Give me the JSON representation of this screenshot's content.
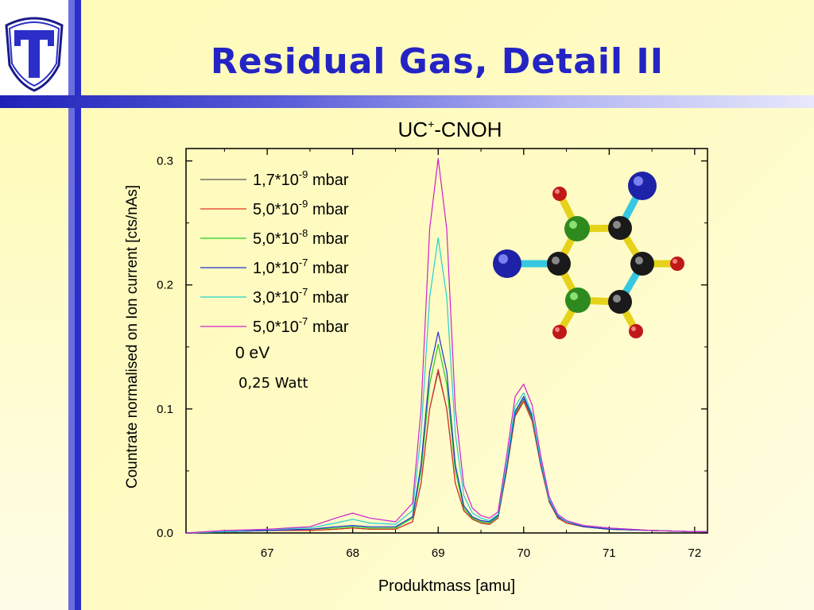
{
  "slide": {
    "title": "Residual Gas, Detail II",
    "colors": {
      "accent": "#2424c4",
      "bar": "#2b2fc8",
      "background": "#fffbb8"
    }
  },
  "logo": {
    "icon": "t-shield-logo-icon"
  },
  "molecule": {
    "icon": "molecule-ball-and-stick",
    "atoms": [
      "O",
      "C",
      "N",
      "C",
      "C",
      "N",
      "C",
      "O",
      "H",
      "H",
      "H",
      "H"
    ]
  },
  "chart_data": {
    "type": "line",
    "title": "UC+-CNOH",
    "title_main": "UC",
    "title_sup": "+",
    "title_rest": "-CNOH",
    "xlabel": "Produktmass [amu]",
    "ylabel": "Countrate normalised on Ion current [cts/nAs]",
    "xlim": [
      66.05,
      72.15
    ],
    "ylim": [
      0,
      0.31
    ],
    "xticks": [
      67,
      68,
      69,
      70,
      71,
      72
    ],
    "yticks": [
      0.0,
      0.1,
      0.2,
      0.3
    ],
    "xtick_labels": [
      "67",
      "68",
      "69",
      "70",
      "71",
      "72"
    ],
    "ytick_labels": [
      "0.0",
      "0.1",
      "0.2",
      "0.3"
    ],
    "legend_position": "top-left",
    "annotations": [
      "0 eV",
      "0,25 Watt"
    ],
    "series": [
      {
        "name": "1,7*10-9 mbar",
        "base": "1,7*10",
        "exp": "-9",
        "unit": " mbar",
        "color": "#555555",
        "x": [
          66.05,
          66.5,
          67.0,
          67.5,
          67.8,
          68.0,
          68.2,
          68.5,
          68.7,
          68.8,
          68.9,
          69.0,
          69.1,
          69.2,
          69.3,
          69.4,
          69.5,
          69.6,
          69.7,
          69.8,
          69.9,
          70.0,
          70.1,
          70.2,
          70.3,
          70.4,
          70.5,
          70.7,
          71.0,
          71.5,
          72.0,
          72.15
        ],
        "y": [
          0.0,
          0.001,
          0.002,
          0.002,
          0.003,
          0.004,
          0.003,
          0.003,
          0.009,
          0.04,
          0.1,
          0.13,
          0.1,
          0.04,
          0.018,
          0.011,
          0.008,
          0.007,
          0.012,
          0.05,
          0.095,
          0.108,
          0.092,
          0.055,
          0.025,
          0.012,
          0.008,
          0.005,
          0.003,
          0.002,
          0.001,
          0.001
        ]
      },
      {
        "name": "5,0*10-9 mbar",
        "base": "5,0*10",
        "exp": "-9",
        "unit": " mbar",
        "color": "#e03020",
        "x": [
          66.05,
          66.5,
          67.0,
          67.5,
          67.8,
          68.0,
          68.2,
          68.5,
          68.7,
          68.8,
          68.9,
          69.0,
          69.1,
          69.2,
          69.3,
          69.4,
          69.5,
          69.6,
          69.7,
          69.8,
          69.9,
          70.0,
          70.1,
          70.2,
          70.3,
          70.4,
          70.5,
          70.7,
          71.0,
          71.5,
          72.0,
          72.15
        ],
        "y": [
          0.0,
          0.001,
          0.002,
          0.002,
          0.003,
          0.004,
          0.003,
          0.003,
          0.009,
          0.04,
          0.1,
          0.132,
          0.1,
          0.04,
          0.018,
          0.011,
          0.008,
          0.007,
          0.012,
          0.05,
          0.094,
          0.106,
          0.09,
          0.054,
          0.025,
          0.012,
          0.008,
          0.005,
          0.003,
          0.002,
          0.001,
          0.001
        ]
      },
      {
        "name": "5,0*10-8 mbar",
        "base": "5,0*10",
        "exp": "-8",
        "unit": " mbar",
        "color": "#22cc22",
        "x": [
          66.05,
          66.5,
          67.0,
          67.5,
          67.8,
          68.0,
          68.2,
          68.5,
          68.7,
          68.8,
          68.9,
          69.0,
          69.1,
          69.2,
          69.3,
          69.4,
          69.5,
          69.6,
          69.7,
          69.8,
          69.9,
          70.0,
          70.1,
          70.2,
          70.3,
          70.4,
          70.5,
          70.7,
          71.0,
          71.5,
          72.0,
          72.15
        ],
        "y": [
          0.0,
          0.001,
          0.002,
          0.003,
          0.004,
          0.005,
          0.004,
          0.004,
          0.012,
          0.05,
          0.12,
          0.152,
          0.12,
          0.05,
          0.02,
          0.012,
          0.009,
          0.008,
          0.013,
          0.052,
          0.097,
          0.11,
          0.093,
          0.056,
          0.026,
          0.013,
          0.009,
          0.005,
          0.003,
          0.002,
          0.001,
          0.001
        ]
      },
      {
        "name": "1,0*10-7 mbar",
        "base": "1,0*10",
        "exp": "-7",
        "unit": " mbar",
        "color": "#2030d0",
        "x": [
          66.05,
          66.5,
          67.0,
          67.5,
          67.8,
          68.0,
          68.2,
          68.5,
          68.7,
          68.8,
          68.9,
          69.0,
          69.1,
          69.2,
          69.3,
          69.4,
          69.5,
          69.6,
          69.7,
          69.8,
          69.9,
          70.0,
          70.1,
          70.2,
          70.3,
          70.4,
          70.5,
          70.7,
          71.0,
          71.5,
          72.0,
          72.15
        ],
        "y": [
          0.0,
          0.001,
          0.002,
          0.003,
          0.005,
          0.006,
          0.005,
          0.005,
          0.013,
          0.055,
          0.13,
          0.162,
          0.13,
          0.055,
          0.022,
          0.013,
          0.01,
          0.009,
          0.014,
          0.053,
          0.098,
          0.11,
          0.094,
          0.056,
          0.026,
          0.013,
          0.009,
          0.005,
          0.003,
          0.002,
          0.001,
          0.001
        ]
      },
      {
        "name": "3,0*10-7 mbar",
        "base": "3,0*10",
        "exp": "-7",
        "unit": " mbar",
        "color": "#20d0d0",
        "x": [
          66.05,
          66.5,
          67.0,
          67.5,
          67.8,
          68.0,
          68.2,
          68.5,
          68.7,
          68.8,
          68.9,
          69.0,
          69.1,
          69.2,
          69.3,
          69.4,
          69.5,
          69.6,
          69.7,
          69.8,
          69.9,
          70.0,
          70.1,
          70.2,
          70.3,
          70.4,
          70.5,
          70.7,
          71.0,
          71.5,
          72.0,
          72.15
        ],
        "y": [
          0.0,
          0.001,
          0.003,
          0.004,
          0.008,
          0.011,
          0.008,
          0.007,
          0.018,
          0.08,
          0.19,
          0.238,
          0.19,
          0.08,
          0.03,
          0.016,
          0.012,
          0.01,
          0.015,
          0.056,
          0.102,
          0.113,
          0.096,
          0.058,
          0.027,
          0.014,
          0.009,
          0.006,
          0.004,
          0.002,
          0.001,
          0.001
        ]
      },
      {
        "name": "5,0*10-7 mbar",
        "base": "5,0*10",
        "exp": "-7",
        "unit": " mbar",
        "color": "#d020d0",
        "x": [
          66.05,
          66.5,
          67.0,
          67.5,
          67.8,
          68.0,
          68.2,
          68.5,
          68.7,
          68.8,
          68.9,
          69.0,
          69.1,
          69.2,
          69.3,
          69.4,
          69.5,
          69.6,
          69.7,
          69.8,
          69.9,
          70.0,
          70.1,
          70.2,
          70.3,
          70.4,
          70.5,
          70.7,
          71.0,
          71.5,
          72.0,
          72.15
        ],
        "y": [
          0.0,
          0.002,
          0.003,
          0.005,
          0.012,
          0.016,
          0.012,
          0.009,
          0.024,
          0.1,
          0.245,
          0.302,
          0.245,
          0.1,
          0.038,
          0.02,
          0.014,
          0.012,
          0.017,
          0.062,
          0.11,
          0.12,
          0.103,
          0.062,
          0.029,
          0.015,
          0.01,
          0.006,
          0.004,
          0.002,
          0.001,
          0.001
        ]
      }
    ]
  }
}
